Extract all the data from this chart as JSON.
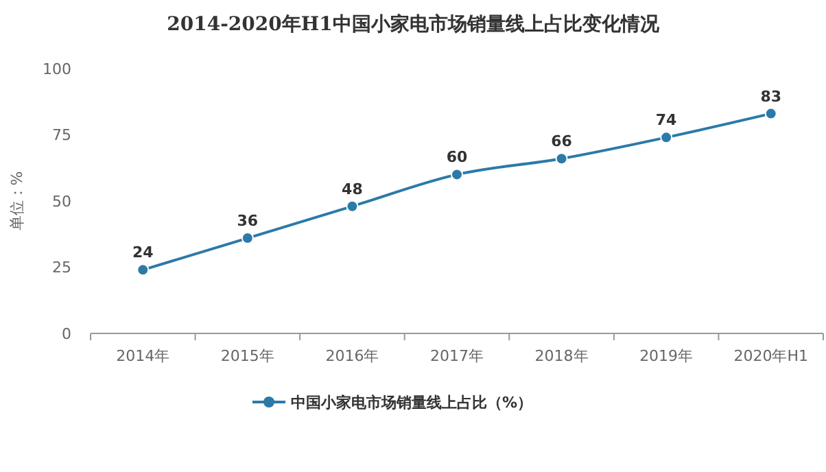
{
  "chart_data": {
    "type": "line",
    "title": "2014-2020年H1中国小家电市场销量线上占比变化情况",
    "ylabel": "单位：%",
    "categories": [
      "2014年",
      "2015年",
      "2016年",
      "2017年",
      "2018年",
      "2019年",
      "2020年H1"
    ],
    "series": [
      {
        "name": "中国小家电市场销量线上占比（%）",
        "color": "#2b7aa8",
        "values": [
          24,
          36,
          48,
          60,
          66,
          74,
          83
        ]
      }
    ],
    "ylim": [
      0,
      100
    ],
    "yticks": [
      0,
      25,
      50,
      75,
      100
    ],
    "grid": false,
    "legend": "bottom",
    "marker": "circle",
    "line_style": "solid",
    "data_labels": true
  }
}
